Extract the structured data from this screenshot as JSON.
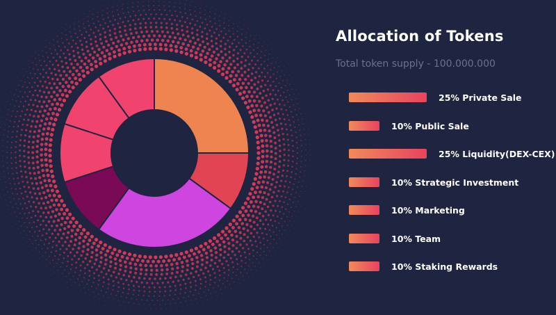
{
  "title": "Allocation of Tokens",
  "subtitle": "Total token supply - 100.000.000",
  "colors": {
    "background": "#1f2540",
    "hole": "#1f2540",
    "bar_start": "#f08a5a",
    "bar_end": "#e9435e",
    "dots": "#e23a5a"
  },
  "chart_data": {
    "type": "pie",
    "donut": true,
    "title": "Allocation of Tokens",
    "unit": "%",
    "series": [
      {
        "name": "Private Sale",
        "value": 25,
        "label": "25% Private Sale",
        "color": "#ee8450"
      },
      {
        "name": "Public Sale",
        "value": 10,
        "label": "10% Public Sale",
        "color": "#e14452"
      },
      {
        "name": "Liquidity(DEX-CEX)",
        "value": 25,
        "label": "25% Liquidity(DEX-CEX)",
        "color": "#cf45e0"
      },
      {
        "name": "Strategic Investment",
        "value": 10,
        "label": "10% Strategic Investment",
        "color": "#7a0a55"
      },
      {
        "name": "Marketing",
        "value": 10,
        "label": "10% Marketing",
        "color": "#f0436d"
      },
      {
        "name": "Team",
        "value": 10,
        "label": "10% Team",
        "color": "#f0436d"
      },
      {
        "name": "Staking Rewards",
        "value": 10,
        "label": "10% Staking Rewards",
        "color": "#f0436d"
      }
    ]
  }
}
